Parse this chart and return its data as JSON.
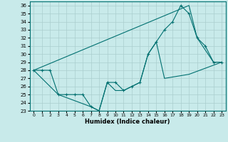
{
  "xlabel": "Humidex (Indice chaleur)",
  "xlim": [
    -0.5,
    23.5
  ],
  "ylim": [
    23,
    36.5
  ],
  "yticks": [
    23,
    24,
    25,
    26,
    27,
    28,
    29,
    30,
    31,
    32,
    33,
    34,
    35,
    36
  ],
  "xticks": [
    0,
    1,
    2,
    3,
    4,
    5,
    6,
    7,
    8,
    9,
    10,
    11,
    12,
    13,
    14,
    15,
    16,
    17,
    18,
    19,
    20,
    21,
    22,
    23
  ],
  "line_color": "#007070",
  "bg_color": "#c8eaea",
  "grid_color": "#aacece",
  "line1_x": [
    0,
    1,
    2,
    3,
    4,
    5,
    6,
    7,
    8,
    9,
    10,
    11,
    12,
    13,
    14,
    15,
    16,
    17,
    18,
    19,
    20,
    21,
    22,
    23
  ],
  "line1_y": [
    28,
    28,
    28,
    25,
    25,
    25,
    25,
    23.5,
    23,
    26.5,
    26.5,
    25.5,
    26,
    26.5,
    30,
    31.5,
    33,
    34,
    36,
    35,
    32,
    31,
    29,
    29
  ],
  "line2_x": [
    0,
    19,
    20,
    22,
    23
  ],
  "line2_y": [
    28,
    36,
    32,
    29,
    29
  ],
  "line3_x": [
    0,
    3,
    7,
    8,
    9,
    10,
    11,
    12,
    13,
    14,
    15,
    16,
    19,
    23
  ],
  "line3_y": [
    28,
    25,
    23.5,
    23,
    26.5,
    25.5,
    25.5,
    26,
    26.5,
    30,
    31.5,
    27,
    27.5,
    29
  ]
}
